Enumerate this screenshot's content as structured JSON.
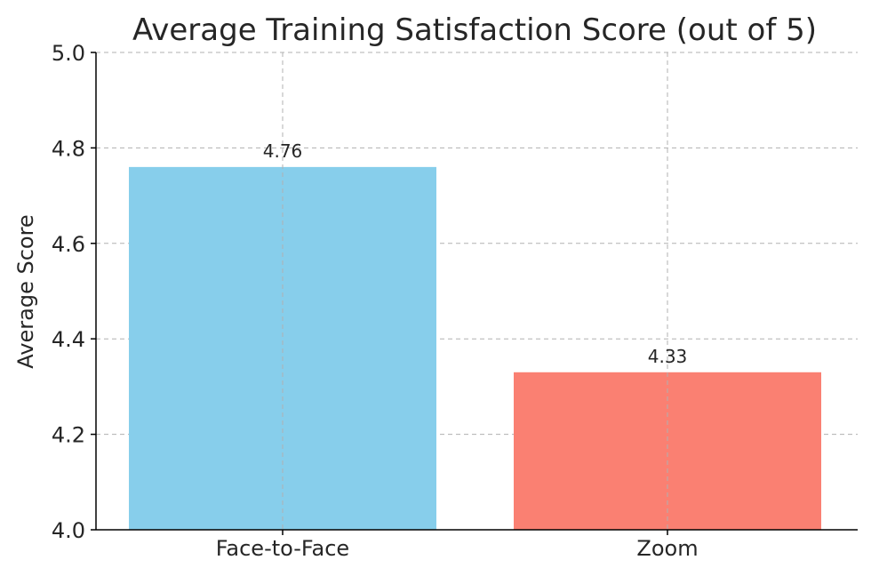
{
  "chart_data": {
    "type": "bar",
    "title": "Average Training Satisfaction Score (out of 5)",
    "xlabel": "",
    "ylabel": "Average Score",
    "categories": [
      "Face-to-Face",
      "Zoom"
    ],
    "values": [
      4.76,
      4.33
    ],
    "data_labels": [
      "4.76",
      "4.33"
    ],
    "colors": [
      "#87CEEB",
      "#FA8072"
    ],
    "ylim": [
      4.0,
      5.0
    ],
    "yticks": [
      4.0,
      4.2,
      4.4,
      4.6,
      4.8,
      5.0
    ],
    "ytick_labels": [
      "4.0",
      "4.2",
      "4.4",
      "4.6",
      "4.8",
      "5.0"
    ],
    "grid": true,
    "legend": false
  }
}
